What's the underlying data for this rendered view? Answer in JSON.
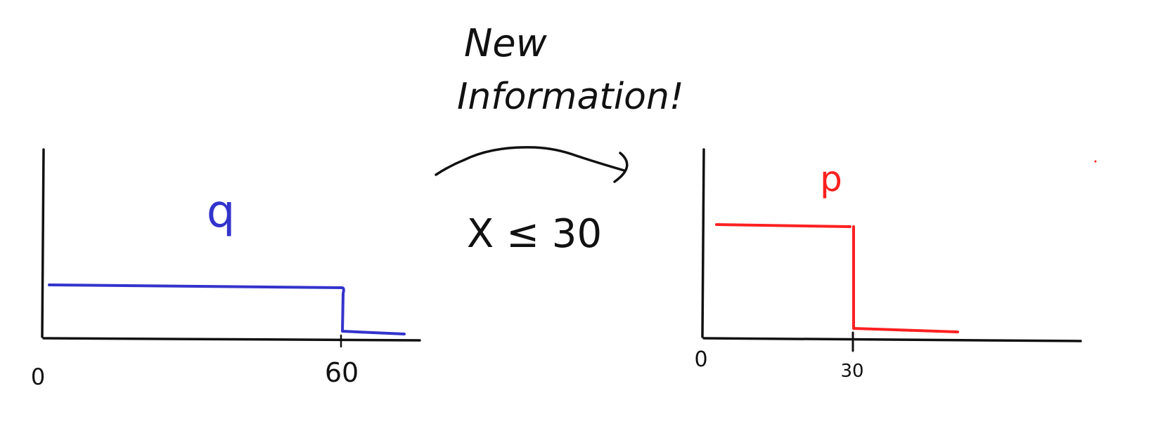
{
  "annotation": {
    "line1": "New",
    "line2": "Information!",
    "condition": "X ≤ 30"
  },
  "left_plot": {
    "label": "q",
    "ticks": [
      "0",
      "60"
    ],
    "color": "#3333cc"
  },
  "right_plot": {
    "label": "p",
    "ticks": [
      "0",
      "30"
    ],
    "color": "#ff2020"
  },
  "chart_data": [
    {
      "type": "line",
      "series": [
        {
          "name": "q",
          "x": [
            0,
            60,
            60,
            67
          ],
          "y": [
            1,
            1,
            0,
            0
          ]
        }
      ],
      "x_ticks": [
        0,
        60
      ]
    },
    {
      "type": "line",
      "series": [
        {
          "name": "p",
          "x": [
            0,
            30,
            30,
            50
          ],
          "y": [
            2,
            2,
            0,
            0
          ]
        }
      ],
      "x_ticks": [
        0,
        30
      ]
    }
  ]
}
